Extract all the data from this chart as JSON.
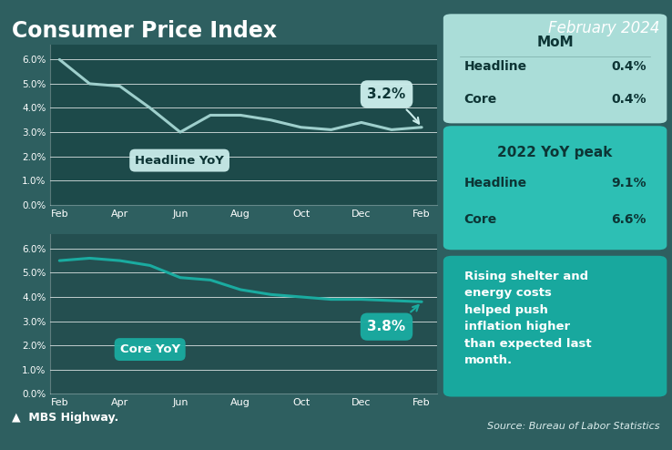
{
  "title": "Consumer Price Index",
  "subtitle": "February 2024",
  "bg_color": "#2e5f60",
  "chart_bg_top": "#1d4a4a",
  "chart_bg_bottom": "#244f50",
  "headline_x": [
    0,
    1,
    2,
    3,
    4,
    5,
    6,
    7,
    8,
    9,
    10,
    11,
    12
  ],
  "headline_y": [
    6.0,
    5.0,
    4.9,
    4.0,
    3.0,
    3.7,
    3.7,
    3.5,
    3.2,
    3.1,
    3.4,
    3.1,
    3.2
  ],
  "core_x": [
    0,
    1,
    2,
    3,
    4,
    5,
    6,
    7,
    8,
    9,
    10,
    11,
    12
  ],
  "core_y": [
    5.5,
    5.6,
    5.5,
    5.3,
    4.8,
    4.7,
    4.3,
    4.1,
    4.0,
    3.9,
    3.9,
    3.85,
    3.8
  ],
  "x_labels": [
    "Feb",
    "Apr",
    "Jun",
    "Aug",
    "Oct",
    "Dec",
    "Feb"
  ],
  "headline_label": "Headline YoY",
  "core_label": "Core YoY",
  "headline_end": "3.2%",
  "core_end": "3.8%",
  "line_color_headline": "#9ecfcc",
  "line_color_core": "#1aaba0",
  "mom_title": "MoM",
  "mom_headline_label": "Headline",
  "mom_headline_val": "0.4%",
  "mom_core_label": "Core",
  "mom_core_val": "0.4%",
  "peak_title": "2022 YoY peak",
  "peak_headline_label": "Headline",
  "peak_headline_val": "9.1%",
  "peak_core_label": "Core",
  "peak_core_val": "6.6%",
  "note_text": "Rising shelter and\nenergy costs\nhelped push\ninflation higher\nthan expected last\nmonth.",
  "source_text": "Source: Bureau of Labor Statistics",
  "mom_box_color": "#aaddd8",
  "peak_box_color": "#2dbfb4",
  "note_box_color": "#18a89e",
  "headline_bubble_color": "#caecea",
  "core_bubble_color": "#1aaba0",
  "title_color": "#ffffff",
  "subtitle_color": "#ffffff",
  "dark_text": "#0d3535",
  "mbs_text": "▲  MBS Highway."
}
